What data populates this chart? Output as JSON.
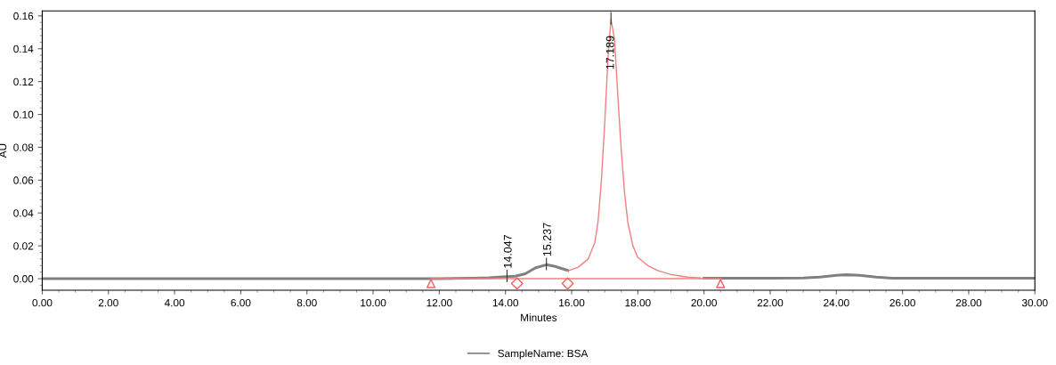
{
  "chart_data": {
    "type": "line",
    "xlabel": "Minutes",
    "ylabel": "AU",
    "xlim": [
      0,
      30
    ],
    "ylim": [
      -0.007,
      0.163
    ],
    "xticks": [
      {
        "value": 0,
        "label": "0.00"
      },
      {
        "value": 2,
        "label": "2.00"
      },
      {
        "value": 4,
        "label": "4.00"
      },
      {
        "value": 6,
        "label": "6.00"
      },
      {
        "value": 8,
        "label": "8.00"
      },
      {
        "value": 10,
        "label": "10.00"
      },
      {
        "value": 12,
        "label": "12.00"
      },
      {
        "value": 14,
        "label": "14.00"
      },
      {
        "value": 16,
        "label": "16.00"
      },
      {
        "value": 18,
        "label": "18.00"
      },
      {
        "value": 20,
        "label": "20.00"
      },
      {
        "value": 22,
        "label": "22.00"
      },
      {
        "value": 24,
        "label": "24.00"
      },
      {
        "value": 26,
        "label": "26.00"
      },
      {
        "value": 28,
        "label": "28.00"
      },
      {
        "value": 30,
        "label": "30.00"
      }
    ],
    "yticks": [
      {
        "value": 0,
        "label": "0.00"
      },
      {
        "value": 0.02,
        "label": "0.02"
      },
      {
        "value": 0.04,
        "label": "0.04"
      },
      {
        "value": 0.06,
        "label": "0.06"
      },
      {
        "value": 0.08,
        "label": "0.08"
      },
      {
        "value": 0.1,
        "label": "0.10"
      },
      {
        "value": 0.12,
        "label": "0.12"
      },
      {
        "value": 0.14,
        "label": "0.14"
      },
      {
        "value": 0.16,
        "label": "0.16"
      }
    ],
    "grid": false,
    "legend": "bottom",
    "marker": "none",
    "line_style": "solid",
    "series": [
      {
        "name": "SampleName: BSA",
        "color": "#808080",
        "x": [
          0,
          11,
          12,
          13,
          13.5,
          14,
          14.3,
          14.6,
          14.9,
          15.237,
          15.5,
          15.88,
          16.2,
          19.9,
          20,
          22,
          23,
          23.5,
          24,
          24.3,
          24.7,
          25.2,
          25.7,
          30
        ],
        "values": [
          0,
          0,
          0,
          0.0003,
          0.0006,
          0.0012,
          0.0015,
          0.003,
          0.0065,
          0.0085,
          0.0075,
          0.005,
          null,
          null,
          0.0003,
          0.0003,
          0.0004,
          0.001,
          0.002,
          0.0024,
          0.002,
          0.001,
          0.0003,
          0.0003
        ]
      },
      {
        "color": "#f08080",
        "x": [
          15.88,
          16.2,
          16.5,
          16.7,
          16.8,
          16.9,
          17.0,
          17.1,
          17.189,
          17.3,
          17.4,
          17.5,
          17.6,
          17.7,
          17.85,
          18.0,
          18.3,
          18.6,
          19.0,
          19.5,
          19.9
        ],
        "values": [
          0.0047,
          0.007,
          0.012,
          0.022,
          0.035,
          0.06,
          0.095,
          0.135,
          0.158,
          0.145,
          0.11,
          0.078,
          0.052,
          0.034,
          0.02,
          0.013,
          0.008,
          0.005,
          0.0025,
          0.001,
          0.0005
        ]
      },
      {
        "color": "#f08080",
        "x": [
          11.75,
          20.5
        ],
        "values": [
          0,
          0
        ]
      },
      {
        "type": "scatter",
        "marker": "triangle",
        "color": "#f06060",
        "x": [
          11.75,
          20.5
        ],
        "values": [
          -0.003,
          -0.003
        ]
      },
      {
        "type": "scatter",
        "marker": "diamond",
        "color": "#f06060",
        "x": [
          14.35,
          15.88
        ],
        "values": [
          -0.003,
          -0.003
        ]
      }
    ],
    "annotations": [
      {
        "text": "14.047",
        "x": 14.047,
        "y": 0.0012
      },
      {
        "text": "15.237",
        "x": 15.237,
        "y": 0.0085
      },
      {
        "text": "17.189",
        "x": 17.189,
        "y": 0.158
      }
    ]
  }
}
